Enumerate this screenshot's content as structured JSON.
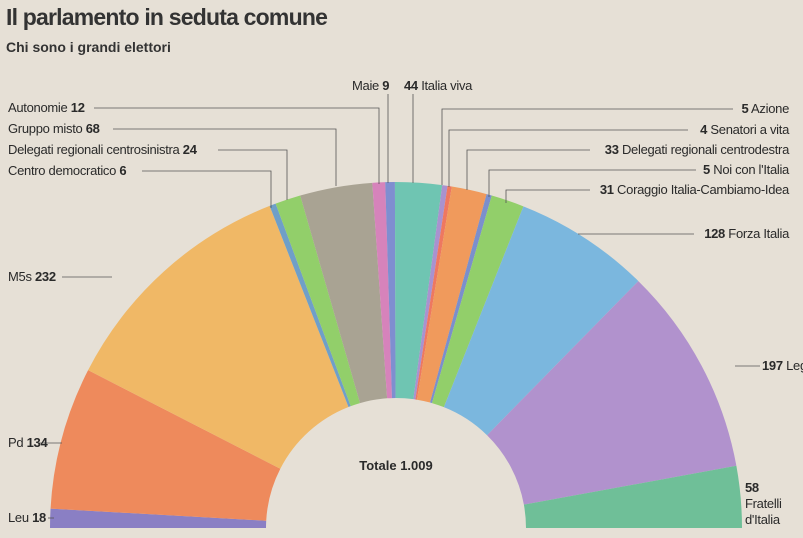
{
  "chart_data": {
    "type": "pie",
    "subtype": "parliament-semicircle",
    "title": "Il parlamento in seduta comune",
    "subtitle": "Chi sono i grandi elettori",
    "total_label": "Totale 1.009",
    "series": [
      {
        "name": "Leu",
        "value": 18,
        "color": "#8a7fc4"
      },
      {
        "name": "Pd",
        "value": 134,
        "color": "#ee8a5c"
      },
      {
        "name": "M5s",
        "value": 232,
        "color": "#f0b866"
      },
      {
        "name": "Centro democratico",
        "value": 6,
        "color": "#6f9fc8"
      },
      {
        "name": "Delegati regionali centrosinistra",
        "value": 24,
        "color": "#92cf6a"
      },
      {
        "name": "Gruppo misto",
        "value": 68,
        "color": "#a9a393"
      },
      {
        "name": "Autonomie",
        "value": 12,
        "color": "#d683bb"
      },
      {
        "name": "Maie",
        "value": 9,
        "color": "#7f8ed0"
      },
      {
        "name": "Italia viva",
        "value": 44,
        "color": "#6fc5b2"
      },
      {
        "name": "Azione",
        "value": 5,
        "color": "#a992cf"
      },
      {
        "name": "Senatori a vita",
        "value": 4,
        "color": "#ee7860"
      },
      {
        "name": "Delegati regionali centrodestra",
        "value": 33,
        "color": "#f09a5c"
      },
      {
        "name": "Noi con l'Italia",
        "value": 5,
        "color": "#7b8fcc"
      },
      {
        "name": "Coraggio Italia-Cambiamo-Idea",
        "value": 31,
        "color": "#92cf6a"
      },
      {
        "name": "Forza Italia",
        "value": 128,
        "color": "#7bb7de"
      },
      {
        "name": "Lega",
        "value": 197,
        "color": "#b192cd"
      },
      {
        "name": "Fratelli d'Italia",
        "value": 58,
        "color": "#6fbf98"
      }
    ]
  },
  "labels": {
    "fdi_line1": "Fratelli",
    "fdi_line2": "d'Italia"
  }
}
